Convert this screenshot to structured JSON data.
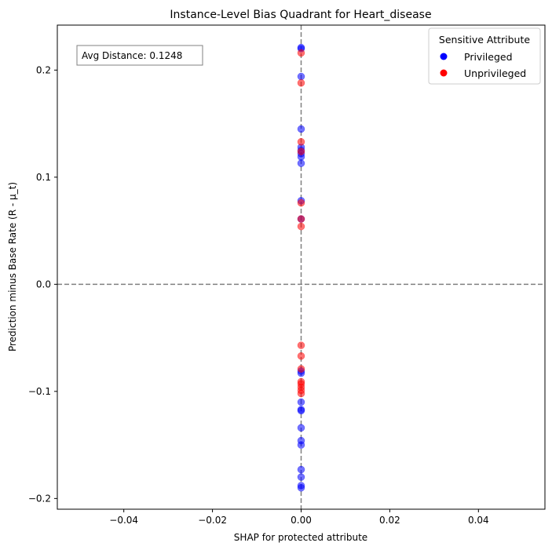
{
  "chart_data": {
    "type": "scatter",
    "title": "Instance-Level Bias Quadrant for Heart_disease",
    "xlabel": "SHAP for protected attribute",
    "ylabel": "Prediction minus Base Rate (R - μ_t)",
    "xlim": [
      -0.055,
      0.055
    ],
    "ylim": [
      -0.21,
      0.242
    ],
    "xticks": [
      -0.04,
      -0.02,
      0.0,
      0.02,
      0.04
    ],
    "xtick_labels": [
      "−0.04",
      "−0.02",
      "0.00",
      "0.02",
      "0.04"
    ],
    "yticks": [
      -0.2,
      -0.1,
      0.0,
      0.1,
      0.2
    ],
    "ytick_labels": [
      "−0.2",
      "−0.1",
      "0.0",
      "0.1",
      "0.2"
    ],
    "reference_lines": {
      "x": 0,
      "y": 0,
      "style": "dashed",
      "color": "#808080"
    },
    "annotation": "Avg Distance: 0.1248",
    "legend": {
      "title": "Sensitive Attribute",
      "placement": "top-right",
      "entries": [
        "Privileged",
        "Unprivileged"
      ]
    },
    "grid": false,
    "series": [
      {
        "name": "Privileged",
        "color": "#0000ff",
        "points": [
          [
            0,
            0.221
          ],
          [
            0,
            0.22
          ],
          [
            0,
            0.194
          ],
          [
            0,
            0.145
          ],
          [
            0,
            0.128
          ],
          [
            0,
            0.125
          ],
          [
            0,
            0.122
          ],
          [
            0,
            0.119
          ],
          [
            0,
            0.113
          ],
          [
            0,
            0.078
          ],
          [
            0,
            0.061
          ],
          [
            0,
            -0.081
          ],
          [
            0,
            -0.083
          ],
          [
            0,
            -0.11
          ],
          [
            0,
            -0.117
          ],
          [
            0,
            -0.118
          ],
          [
            0,
            -0.134
          ],
          [
            0,
            -0.146
          ],
          [
            0,
            -0.15
          ],
          [
            0,
            -0.173
          ],
          [
            0,
            -0.18
          ],
          [
            0,
            -0.188
          ],
          [
            0,
            -0.19
          ]
        ]
      },
      {
        "name": "Unprivileged",
        "color": "#ff0000",
        "points": [
          [
            0,
            0.216
          ],
          [
            0,
            0.188
          ],
          [
            0,
            0.133
          ],
          [
            0,
            0.124
          ],
          [
            0,
            0.076
          ],
          [
            0,
            0.061
          ],
          [
            0,
            0.054
          ],
          [
            0,
            -0.057
          ],
          [
            0,
            -0.067
          ],
          [
            0,
            -0.079
          ],
          [
            0,
            -0.091
          ],
          [
            0,
            -0.093
          ],
          [
            0,
            -0.096
          ],
          [
            0,
            -0.099
          ],
          [
            0,
            -0.102
          ]
        ]
      }
    ]
  }
}
